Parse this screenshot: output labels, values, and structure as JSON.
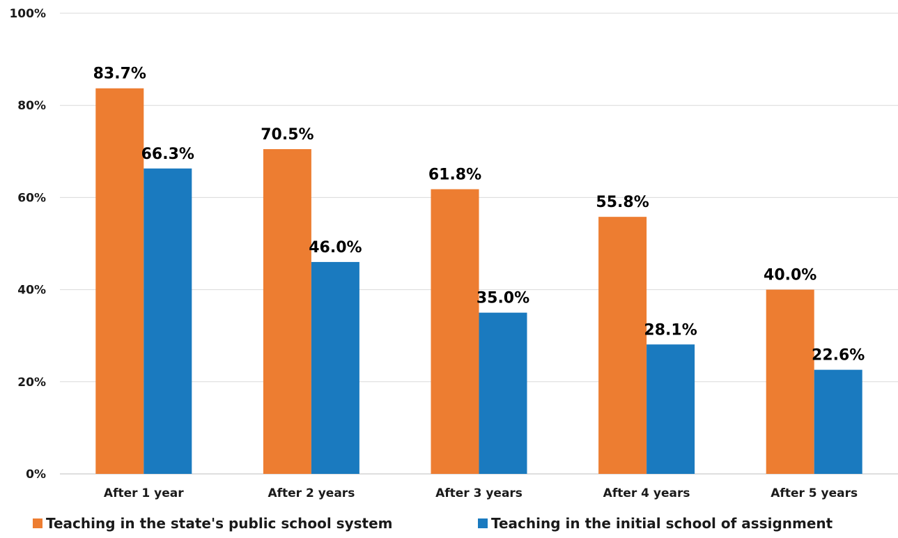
{
  "chart_data": {
    "type": "bar",
    "categories": [
      "After 1 year",
      "After 2 years",
      "After 3 years",
      "After 4 years",
      "After 5 years"
    ],
    "series": [
      {
        "name": "Teaching in the state's public school system",
        "values": [
          83.7,
          70.5,
          61.8,
          55.8,
          40.0
        ],
        "labels": [
          "83.7%",
          "70.5%",
          "61.8%",
          "55.8%",
          "40.0%"
        ],
        "color": "#ED7D31"
      },
      {
        "name": "Teaching in the initial school of assignment",
        "values": [
          66.3,
          46.0,
          35.0,
          28.1,
          22.6
        ],
        "labels": [
          "66.3%",
          "46.0%",
          "35.0%",
          "28.1%",
          "22.6%"
        ],
        "color": "#1A7ABF"
      }
    ],
    "ylim": [
      0,
      100
    ],
    "yticks": [
      0,
      20,
      40,
      60,
      80,
      100
    ],
    "ytick_labels": [
      "0%",
      "20%",
      "40%",
      "60%",
      "80%",
      "100%"
    ],
    "grid": true,
    "legend_position": "bottom",
    "title": "",
    "xlabel": "",
    "ylabel": ""
  }
}
